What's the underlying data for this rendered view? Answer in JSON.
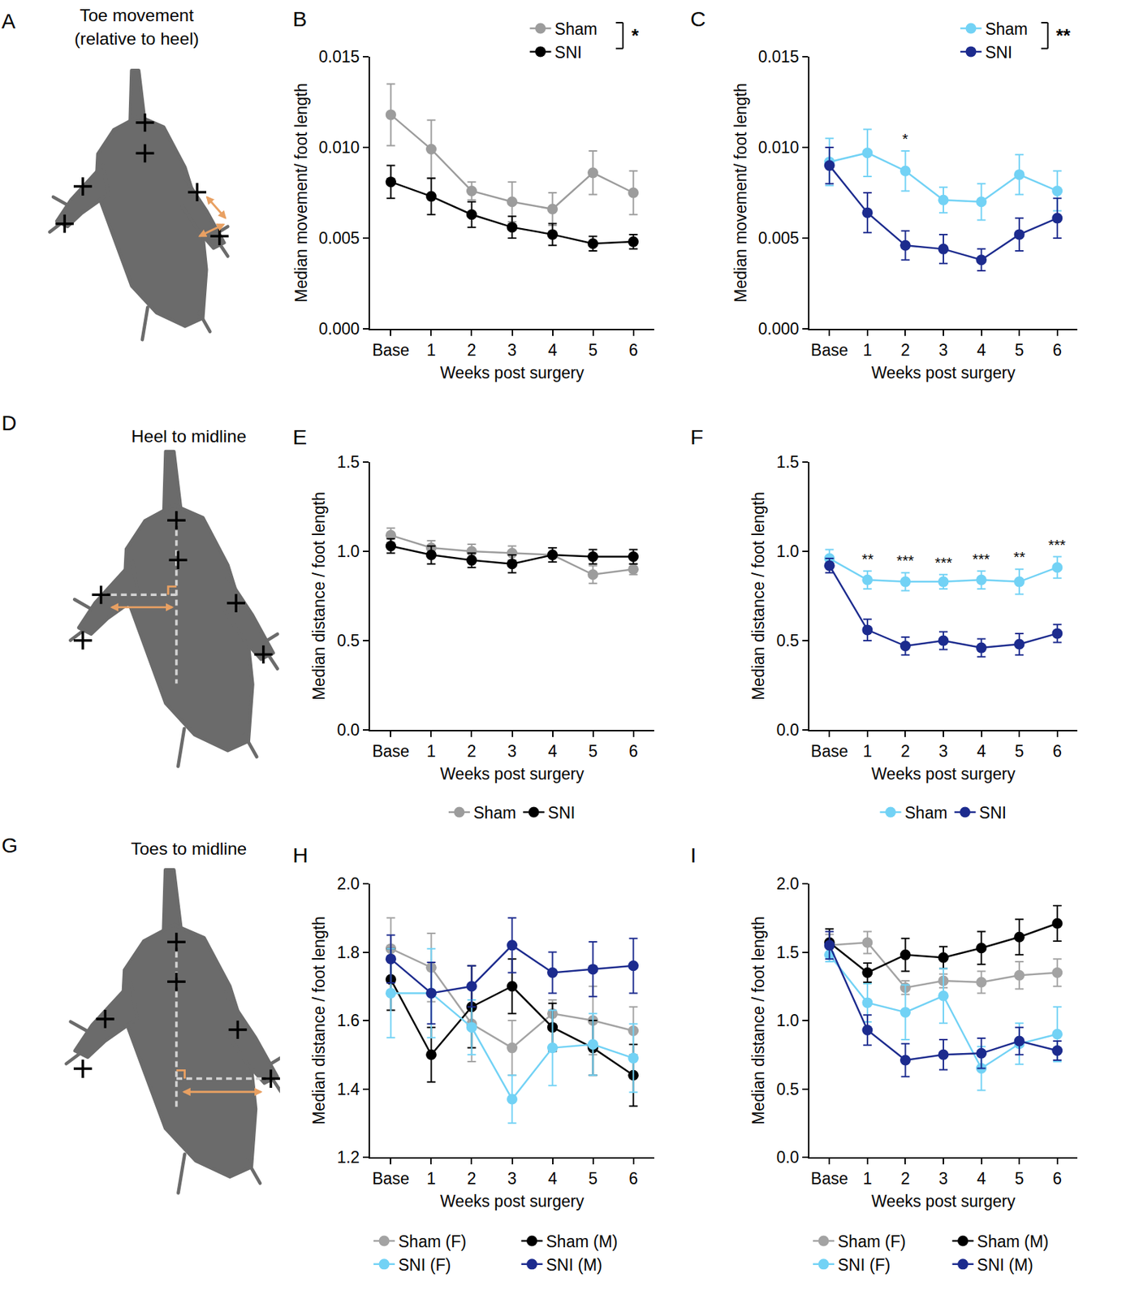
{
  "diagrams": [
    {
      "panel": "A",
      "title": "Toe movement (relative to heel)"
    },
    {
      "panel": "D",
      "title": "Heel to midline"
    },
    {
      "panel": "G",
      "title": "Toes to midline"
    }
  ],
  "chart_data": [
    {
      "panel": "B",
      "type": "line",
      "x_label": "Weeks post surgery",
      "y_label": "Median movement/ foot length",
      "categories": [
        "Base",
        "1",
        "2",
        "3",
        "4",
        "5",
        "6"
      ],
      "ylim": [
        0,
        0.015
      ],
      "yticks": [
        {
          "value": 0,
          "label": "0.000"
        },
        0.005,
        {
          "value": 0.01,
          "label": "0.010"
        },
        0.015
      ],
      "grid": false,
      "marker": "circle",
      "legend": "top right",
      "series": [
        {
          "name": "Sham",
          "color": "#9c9c9c",
          "values": [
            0.0118,
            0.0099,
            0.0076,
            0.007,
            0.0066,
            0.0086,
            0.0075
          ],
          "errors": [
            0.0017,
            0.0016,
            0.0005,
            0.0011,
            0.0009,
            0.0012,
            0.0012
          ]
        },
        {
          "name": "SNI",
          "color": "#000000",
          "values": [
            0.0081,
            0.0073,
            0.0063,
            0.0056,
            0.0052,
            0.0047,
            0.0048
          ],
          "errors": [
            0.0009,
            0.001,
            0.0007,
            0.0006,
            0.0006,
            0.0004,
            0.0004
          ]
        }
      ],
      "annotations": [
        {
          "text": "*"
        }
      ]
    },
    {
      "panel": "C",
      "type": "line",
      "x_label": "Weeks post surgery",
      "y_label": "Median movement/ foot length",
      "categories": [
        "Base",
        "1",
        "2",
        "3",
        "4",
        "5",
        "6"
      ],
      "ylim": [
        0,
        0.015
      ],
      "yticks": [
        {
          "value": 0,
          "label": "0.000"
        },
        0.005,
        {
          "value": 0.01,
          "label": "0.010"
        },
        0.015
      ],
      "grid": false,
      "marker": "circle",
      "legend": "top right",
      "series": [
        {
          "name": "Sham",
          "color": "#72d2f5",
          "values": [
            0.0092,
            0.0097,
            0.0087,
            0.0071,
            0.007,
            0.0085,
            0.0076
          ],
          "errors": [
            0.0013,
            0.0013,
            0.0011,
            0.0007,
            0.001,
            0.0011,
            0.0011
          ]
        },
        {
          "name": "SNI",
          "color": "#1c2b8e",
          "values": [
            0.009,
            0.0064,
            0.0046,
            0.0044,
            0.0038,
            0.0052,
            0.0061
          ],
          "errors": [
            0.001,
            0.0011,
            0.0008,
            0.0008,
            0.0006,
            0.0009,
            0.0011
          ]
        }
      ],
      "annotations": [
        {
          "text": "**"
        },
        {
          "text": "*",
          "x": "2"
        }
      ]
    },
    {
      "panel": "E",
      "type": "line",
      "x_label": "Weeks post surgery",
      "y_label": "Median distance / foot length",
      "categories": [
        "Base",
        "1",
        "2",
        "3",
        "4",
        "5",
        "6"
      ],
      "ylim": [
        0,
        1.5
      ],
      "yticks": [
        {
          "value": 0,
          "label": "0.0"
        },
        0.5,
        {
          "value": 1,
          "label": "1.0"
        },
        1.5
      ],
      "grid": false,
      "marker": "circle",
      "legend": "bottom",
      "series": [
        {
          "name": "Sham",
          "color": "#9c9c9c",
          "values": [
            1.09,
            1.02,
            1.0,
            0.99,
            0.98,
            0.87,
            0.9
          ],
          "errors": [
            0.04,
            0.04,
            0.04,
            0.04,
            0.04,
            0.05,
            0.03
          ]
        },
        {
          "name": "SNI",
          "color": "#000000",
          "values": [
            1.03,
            0.98,
            0.95,
            0.93,
            0.98,
            0.97,
            0.97
          ],
          "errors": [
            0.04,
            0.05,
            0.04,
            0.05,
            0.04,
            0.04,
            0.04
          ]
        }
      ]
    },
    {
      "panel": "F",
      "type": "line",
      "x_label": "Weeks post surgery",
      "y_label": "Median distance / foot length",
      "categories": [
        "Base",
        "1",
        "2",
        "3",
        "4",
        "5",
        "6"
      ],
      "ylim": [
        0,
        1.5
      ],
      "yticks": [
        {
          "value": 0,
          "label": "0.0"
        },
        0.5,
        {
          "value": 1,
          "label": "1.0"
        },
        1.5
      ],
      "grid": false,
      "marker": "circle",
      "legend": "bottom",
      "series": [
        {
          "name": "Sham",
          "color": "#72d2f5",
          "values": [
            0.96,
            0.84,
            0.83,
            0.83,
            0.84,
            0.83,
            0.91
          ],
          "errors": [
            0.05,
            0.05,
            0.05,
            0.04,
            0.05,
            0.07,
            0.06
          ]
        },
        {
          "name": "SNI",
          "color": "#1c2b8e",
          "values": [
            0.92,
            0.56,
            0.47,
            0.5,
            0.46,
            0.48,
            0.54
          ],
          "errors": [
            0.04,
            0.06,
            0.05,
            0.05,
            0.05,
            0.06,
            0.05
          ]
        }
      ],
      "annotations": [
        {
          "text": "**",
          "x": "1"
        },
        {
          "text": "***",
          "x": "2"
        },
        {
          "text": "***",
          "x": "3"
        },
        {
          "text": "***",
          "x": "4"
        },
        {
          "text": "**",
          "x": "5"
        },
        {
          "text": "***",
          "x": "6"
        }
      ]
    },
    {
      "panel": "H",
      "type": "line",
      "x_label": "Weeks post surgery",
      "y_label": "Median distance / foot length",
      "categories": [
        "Base",
        "1",
        "2",
        "3",
        "4",
        "5",
        "6"
      ],
      "ylim": [
        1.2,
        2.0
      ],
      "yticks": [
        1.2,
        1.4,
        1.6,
        1.8,
        {
          "value": 2,
          "label": "2.0"
        }
      ],
      "grid": false,
      "marker": "circle",
      "legend": "bottom",
      "series": [
        {
          "name": "Sham (F)",
          "color": "#a3a3a3",
          "values": [
            1.81,
            1.755,
            1.59,
            1.52,
            1.62,
            1.6,
            1.57
          ],
          "errors": [
            0.09,
            0.1,
            0.11,
            0.08,
            0.04,
            0.1,
            0.07
          ]
        },
        {
          "name": "Sham (M)",
          "color": "#000000",
          "values": [
            1.72,
            1.5,
            1.64,
            1.7,
            1.58,
            1.52,
            1.44
          ],
          "errors": [
            0.09,
            0.08,
            0.12,
            0.08,
            0.07,
            0.08,
            0.09
          ]
        },
        {
          "name": "SNI (F)",
          "color": "#72d2f5",
          "values": [
            1.68,
            1.68,
            1.58,
            1.37,
            1.52,
            1.53,
            1.49
          ],
          "errors": [
            0.13,
            0.13,
            0.08,
            0.07,
            0.11,
            0.09,
            0.1
          ]
        },
        {
          "name": "SNI (M)",
          "color": "#1c2b8e",
          "values": [
            1.78,
            1.68,
            1.7,
            1.82,
            1.74,
            1.75,
            1.76
          ],
          "errors": [
            0.07,
            0.09,
            0.06,
            0.08,
            0.06,
            0.08,
            0.08
          ]
        }
      ]
    },
    {
      "panel": "I",
      "type": "line",
      "x_label": "Weeks post surgery",
      "y_label": "Median distance / foot length",
      "categories": [
        "Base",
        "1",
        "2",
        "3",
        "4",
        "5",
        "6"
      ],
      "ylim": [
        0,
        2.0
      ],
      "yticks": [
        {
          "value": 0,
          "label": "0.0"
        },
        0.5,
        {
          "value": 1,
          "label": "1.0"
        },
        1.5,
        {
          "value": 2,
          "label": "2.0"
        }
      ],
      "grid": false,
      "marker": "circle",
      "legend": "bottom",
      "series": [
        {
          "name": "Sham (F)",
          "color": "#a3a3a3",
          "values": [
            1.55,
            1.57,
            1.24,
            1.29,
            1.28,
            1.33,
            1.35
          ],
          "errors": [
            0.08,
            0.08,
            0.05,
            0.05,
            0.08,
            0.1,
            0.1
          ]
        },
        {
          "name": "Sham (M)",
          "color": "#000000",
          "values": [
            1.57,
            1.35,
            1.48,
            1.46,
            1.53,
            1.61,
            1.71
          ],
          "errors": [
            0.1,
            0.07,
            0.12,
            0.08,
            0.12,
            0.13,
            0.13
          ]
        },
        {
          "name": "SNI (F)",
          "color": "#72d2f5",
          "values": [
            1.48,
            1.13,
            1.06,
            1.18,
            0.65,
            0.83,
            0.9
          ],
          "errors": [
            0.05,
            0.14,
            0.2,
            0.2,
            0.16,
            0.15,
            0.2
          ]
        },
        {
          "name": "SNI (M)",
          "color": "#1c2b8e",
          "values": [
            1.55,
            0.93,
            0.71,
            0.75,
            0.76,
            0.85,
            0.78
          ],
          "errors": [
            0.1,
            0.11,
            0.12,
            0.11,
            0.11,
            0.1,
            0.07
          ]
        }
      ]
    }
  ]
}
